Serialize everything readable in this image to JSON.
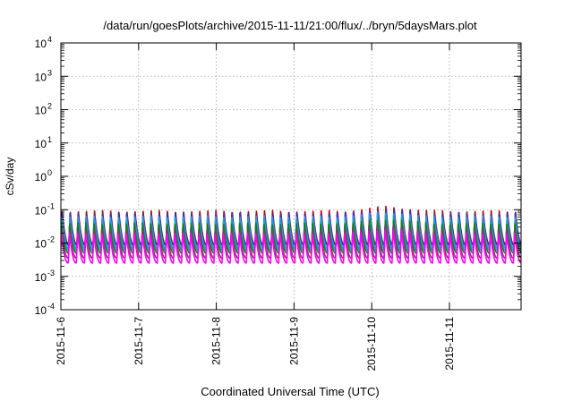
{
  "chart_data": {
    "type": "line",
    "title": "/data/run/goesPlots/archive/2015-11-11/21:00/flux/../bryn/5daysMars.plot",
    "xlabel": "Coordinated Universal Time (UTC)",
    "ylabel": "cSv/day",
    "yscale": "log",
    "ylim": [
      0.0001,
      10000
    ],
    "xlim": [
      "2015-11-06",
      "2015-11-12"
    ],
    "grid": true,
    "legend": "none",
    "y_ticks": [
      {
        "value": 0.0001,
        "base": "10",
        "exp": "-4"
      },
      {
        "value": 0.001,
        "base": "10",
        "exp": "-3"
      },
      {
        "value": 0.01,
        "base": "10",
        "exp": "-2"
      },
      {
        "value": 0.1,
        "base": "10",
        "exp": "-1"
      },
      {
        "value": 1,
        "base": "10",
        "exp": "0"
      },
      {
        "value": 10,
        "base": "10",
        "exp": "1"
      },
      {
        "value": 100,
        "base": "10",
        "exp": "2"
      },
      {
        "value": 1000,
        "base": "10",
        "exp": "3"
      },
      {
        "value": 10000,
        "base": "10",
        "exp": "4"
      }
    ],
    "x_ticks": [
      "2015-11-6",
      "2015-11-7",
      "2015-11-8",
      "2015-11-9",
      "2015-11-10",
      "2015-11-11"
    ],
    "sawtooth_period_hours": 2.5,
    "bump": {
      "center_day": 4.2,
      "width_days": 0.35,
      "factor": 1.35
    },
    "series": [
      {
        "color": "#cc0000",
        "peak": 0.095,
        "trough": 0.009
      },
      {
        "color": "#1a3bd6",
        "peak": 0.08,
        "trough": 0.0085
      },
      {
        "color": "#3a8ee8",
        "peak": 0.065,
        "trough": 0.007
      },
      {
        "color": "#00b3b3",
        "peak": 0.05,
        "trough": 0.006
      },
      {
        "color": "#1f7a1f",
        "peak": 0.04,
        "trough": 0.005
      },
      {
        "color": "#8b3a62",
        "peak": 0.025,
        "trough": 0.0035
      },
      {
        "color": "#ff00ff",
        "peak": 0.02,
        "trough": 0.0025
      }
    ]
  }
}
